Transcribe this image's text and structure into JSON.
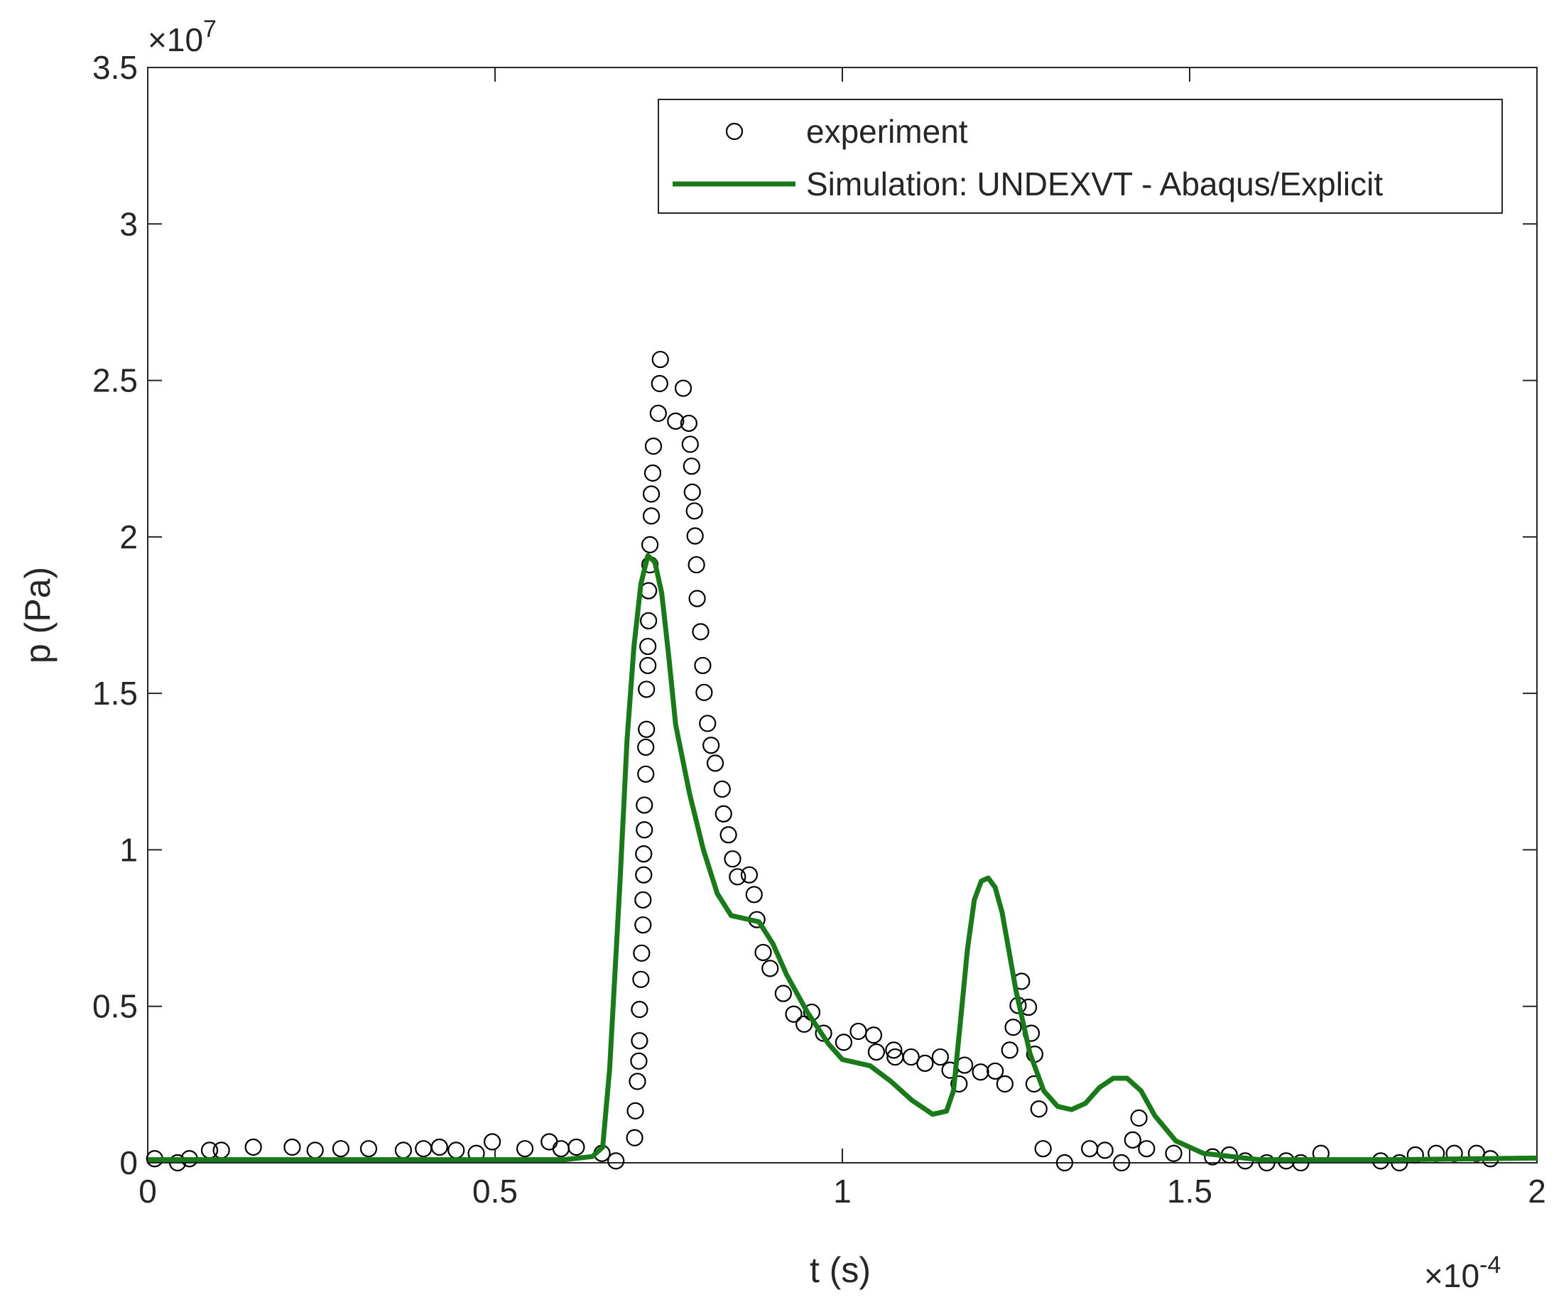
{
  "chart_data": {
    "type": "line",
    "xlabel": "t (s)",
    "ylabel": "p (Pa)",
    "x_multiplier": {
      "base": "×10",
      "exponent": "-4"
    },
    "y_multiplier": {
      "base": "×10",
      "exponent": "7"
    },
    "xlim": [
      0,
      2
    ],
    "xticks": [
      0,
      0.5,
      1,
      1.5,
      2
    ],
    "ylim": [
      0,
      3.5
    ],
    "yticks": [
      0,
      0.5,
      1,
      1.5,
      2,
      2.5,
      3,
      3.5
    ],
    "legend": "northeast",
    "box": true,
    "series": [
      {
        "name": "experiment",
        "style": "markers",
        "color": "#000000",
        "x": [
          0.01,
          0.043,
          0.06,
          0.089,
          0.106,
          0.152,
          0.208,
          0.241,
          0.278,
          0.318,
          0.368,
          0.397,
          0.42,
          0.444,
          0.473,
          0.496,
          0.543,
          0.578,
          0.595,
          0.617,
          0.654,
          0.674,
          0.701,
          0.702,
          0.705,
          0.707,
          0.708,
          0.708,
          0.71,
          0.711,
          0.713,
          0.713,
          0.714,
          0.714,
          0.715,
          0.715,
          0.717,
          0.717,
          0.718,
          0.718,
          0.72,
          0.72,
          0.721,
          0.721,
          0.723,
          0.723,
          0.725,
          0.725,
          0.727,
          0.728,
          0.735,
          0.737,
          0.738,
          0.76,
          0.771,
          0.779,
          0.781,
          0.783,
          0.784,
          0.787,
          0.788,
          0.79,
          0.791,
          0.796,
          0.799,
          0.801,
          0.806,
          0.811,
          0.817,
          0.827,
          0.829,
          0.836,
          0.842,
          0.849,
          0.866,
          0.873,
          0.877,
          0.886,
          0.896,
          0.915,
          0.93,
          0.945,
          0.956,
          0.973,
          1.002,
          1.023,
          1.045,
          1.049,
          1.074,
          1.076,
          1.099,
          1.119,
          1.141,
          1.155,
          1.168,
          1.176,
          1.199,
          1.22,
          1.234,
          1.241,
          1.246,
          1.253,
          1.258,
          1.268,
          1.272,
          1.277,
          1.276,
          1.283,
          1.289,
          1.32,
          1.356,
          1.378,
          1.402,
          1.418,
          1.427,
          1.438,
          1.477,
          1.533,
          1.557,
          1.58,
          1.611,
          1.639,
          1.66,
          1.689,
          1.775,
          1.802,
          1.825,
          1.855,
          1.881,
          1.913,
          1.933
        ],
        "values": [
          0.013,
          0,
          0.013,
          0.04,
          0.04,
          0.05,
          0.05,
          0.04,
          0.045,
          0.045,
          0.04,
          0.045,
          0.05,
          0.04,
          0.03,
          0.067,
          0.045,
          0.067,
          0.045,
          0.05,
          0.03,
          0.006,
          0.08,
          0.166,
          0.26,
          0.325,
          0.39,
          0.49,
          0.586,
          0.67,
          0.76,
          0.84,
          0.92,
          0.987,
          1.064,
          1.143,
          1.242,
          1.328,
          1.385,
          1.513,
          1.589,
          1.65,
          1.732,
          1.828,
          1.911,
          1.975,
          2.067,
          2.137,
          2.204,
          2.29,
          2.395,
          2.49,
          2.567,
          2.37,
          2.475,
          2.363,
          2.296,
          2.226,
          2.143,
          2.083,
          2.003,
          1.911,
          1.803,
          1.697,
          1.589,
          1.503,
          1.404,
          1.334,
          1.277,
          1.194,
          1.115,
          1.048,
          0.971,
          0.914,
          0.92,
          0.857,
          0.777,
          0.672,
          0.621,
          0.541,
          0.475,
          0.443,
          0.481,
          0.414,
          0.385,
          0.42,
          0.408,
          0.354,
          0.36,
          0.338,
          0.338,
          0.318,
          0.338,
          0.296,
          0.252,
          0.312,
          0.29,
          0.293,
          0.252,
          0.36,
          0.433,
          0.503,
          0.58,
          0.497,
          0.414,
          0.347,
          0.252,
          0.172,
          0.045,
          0,
          0.045,
          0.04,
          0,
          0.073,
          0.143,
          0.045,
          0.03,
          0.019,
          0.025,
          0.006,
          0,
          0.006,
          0,
          0.03,
          0.006,
          0,
          0.025,
          0.03,
          0.03,
          0.03,
          0.013
        ]
      },
      {
        "name": "Simulation: UNDEXVT - Abaqus/Explicit",
        "style": "line",
        "color": "#1a7a1a",
        "x": [
          0,
          0.6,
          0.64,
          0.655,
          0.665,
          0.68,
          0.69,
          0.7,
          0.71,
          0.72,
          0.73,
          0.74,
          0.75,
          0.76,
          0.78,
          0.8,
          0.82,
          0.84,
          0.86,
          0.88,
          0.9,
          0.92,
          0.95,
          0.98,
          1.0,
          1.04,
          1.07,
          1.1,
          1.13,
          1.15,
          1.16,
          1.17,
          1.18,
          1.19,
          1.2,
          1.21,
          1.22,
          1.23,
          1.25,
          1.27,
          1.29,
          1.31,
          1.33,
          1.35,
          1.37,
          1.39,
          1.41,
          1.43,
          1.45,
          1.48,
          1.52,
          1.6,
          1.7,
          1.8,
          2.0
        ],
        "values": [
          0.01,
          0.01,
          0.02,
          0.05,
          0.3,
          0.9,
          1.35,
          1.65,
          1.85,
          1.94,
          1.92,
          1.82,
          1.62,
          1.4,
          1.18,
          1.0,
          0.86,
          0.79,
          0.78,
          0.77,
          0.7,
          0.6,
          0.48,
          0.38,
          0.33,
          0.31,
          0.26,
          0.2,
          0.155,
          0.165,
          0.23,
          0.45,
          0.68,
          0.84,
          0.9,
          0.91,
          0.88,
          0.8,
          0.55,
          0.35,
          0.23,
          0.18,
          0.17,
          0.19,
          0.24,
          0.27,
          0.27,
          0.23,
          0.15,
          0.07,
          0.03,
          0.01,
          0.01,
          0.01,
          0.015
        ]
      }
    ]
  }
}
